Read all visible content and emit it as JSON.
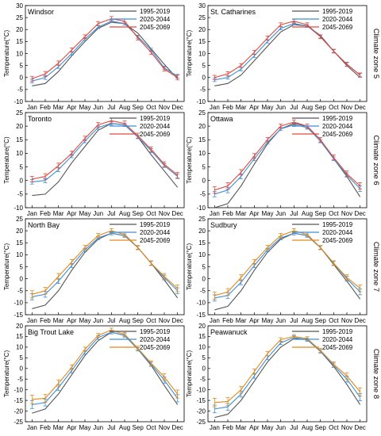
{
  "figure": {
    "zone_labels": [
      "Climate zone 5",
      "Climate zone 6",
      "Climate zone 7",
      "Climate zone 8"
    ]
  },
  "chart_data": [
    {
      "type": "line",
      "title": "Windsor",
      "zone": "Climate zone 5",
      "xlabel": "",
      "ylabel": "Temperature(°C)",
      "categories": [
        "Jan",
        "Feb",
        "Mar",
        "Apr",
        "May",
        "Jun",
        "Jul",
        "Aug",
        "Sep",
        "Oct",
        "Nov",
        "Dec"
      ],
      "ylim": [
        -10,
        30
      ],
      "yticks": [
        -10,
        -5,
        0,
        5,
        10,
        15,
        20,
        25,
        30
      ],
      "legend_position": "top-right",
      "series": [
        {
          "name": "1995-2019",
          "color": "#555555",
          "values": [
            -3.5,
            -2.5,
            2.5,
            9,
            15,
            20.5,
            23,
            22.5,
            18.5,
            12,
            5.5,
            -0.5
          ]
        },
        {
          "name": "2020-2044",
          "color": "#3f8fd6",
          "values": [
            -1.5,
            0,
            4.5,
            10,
            16,
            21,
            23.5,
            22.5,
            17,
            11.5,
            4,
            0.5
          ],
          "errors": [
            0.8,
            0.8,
            0.7,
            0.6,
            0.6,
            0.6,
            0.6,
            0.6,
            0.6,
            0.7,
            0.7,
            0.8
          ]
        },
        {
          "name": "2045-2069",
          "color": "#e04a3e",
          "values": [
            -0.5,
            1.5,
            6,
            11.5,
            17,
            22.5,
            24.5,
            23.5,
            16.5,
            10.5,
            3.5,
            0
          ],
          "errors": [
            1,
            1,
            0.9,
            0.8,
            0.8,
            0.8,
            0.9,
            0.9,
            0.9,
            0.9,
            0.9,
            1
          ]
        }
      ]
    },
    {
      "type": "line",
      "title": "St. Catharines",
      "zone": "Climate zone 5",
      "xlabel": "",
      "ylabel": "Temperature(°C)",
      "categories": [
        "Jan",
        "Feb",
        "Mar",
        "Apr",
        "May",
        "Jun",
        "Jul",
        "Aug",
        "Sep",
        "Oct",
        "Nov",
        "Dec"
      ],
      "ylim": [
        -10,
        30
      ],
      "yticks": [
        -10,
        -5,
        0,
        5,
        10,
        15,
        20,
        25,
        30
      ],
      "legend_position": "top-right",
      "series": [
        {
          "name": "1995-2019",
          "color": "#555555",
          "values": [
            -3.5,
            -2.5,
            1,
            7,
            13,
            19,
            22,
            21.5,
            17.5,
            11,
            5,
            0
          ]
        },
        {
          "name": "2020-2044",
          "color": "#3f8fd6",
          "values": [
            -1,
            0,
            3.5,
            9,
            15,
            20.5,
            22.5,
            21.5,
            17,
            11,
            5.5,
            1
          ],
          "errors": [
            0.7,
            0.7,
            0.7,
            0.6,
            0.6,
            0.6,
            0.6,
            0.6,
            0.6,
            0.6,
            0.7,
            0.7
          ]
        },
        {
          "name": "2045-2069",
          "color": "#e04a3e",
          "values": [
            0,
            1.5,
            5,
            10.5,
            16.5,
            22,
            23.5,
            22,
            17,
            11,
            5.5,
            1
          ],
          "errors": [
            0.9,
            0.9,
            0.8,
            0.8,
            0.8,
            0.8,
            0.8,
            0.8,
            0.8,
            0.8,
            0.9,
            0.9
          ]
        }
      ]
    },
    {
      "type": "line",
      "title": "Toronto",
      "zone": "Climate zone 6",
      "xlabel": "",
      "ylabel": "Temperature(°C)",
      "categories": [
        "Jan",
        "Feb",
        "Mar",
        "Apr",
        "May",
        "Jun",
        "Jul",
        "Aug",
        "Sep",
        "Oct",
        "Nov",
        "Dec"
      ],
      "ylim": [
        -10,
        25
      ],
      "yticks": [
        -10,
        -5,
        0,
        5,
        10,
        15,
        20,
        25
      ],
      "legend_position": "top-right",
      "series": [
        {
          "name": "1995-2019",
          "color": "#555555",
          "values": [
            -5.5,
            -5,
            -0.5,
            6.5,
            12.5,
            18.5,
            21,
            20.5,
            16,
            9.5,
            3.5,
            -2.5
          ]
        },
        {
          "name": "2020-2044",
          "color": "#3f8fd6",
          "values": [
            -0.5,
            0,
            4,
            9,
            14.5,
            19.5,
            21,
            20.5,
            16,
            11,
            5.5,
            1.5
          ],
          "errors": [
            0.8,
            0.8,
            0.7,
            0.6,
            0.6,
            0.6,
            0.6,
            0.6,
            0.6,
            0.7,
            0.7,
            0.8
          ]
        },
        {
          "name": "2045-2069",
          "color": "#e04a3e",
          "values": [
            0.5,
            1.5,
            5.5,
            10,
            15.5,
            20.5,
            22,
            21,
            16.5,
            11.5,
            6,
            2
          ],
          "errors": [
            1,
            1,
            0.9,
            0.8,
            0.8,
            0.8,
            0.9,
            0.9,
            0.9,
            0.9,
            0.9,
            1
          ]
        }
      ]
    },
    {
      "type": "line",
      "title": "Ottawa",
      "zone": "Climate zone 6",
      "xlabel": "",
      "ylabel": "Temperature(°C)",
      "categories": [
        "Jan",
        "Feb",
        "Mar",
        "Apr",
        "May",
        "Jun",
        "Jul",
        "Aug",
        "Sep",
        "Oct",
        "Nov",
        "Dec"
      ],
      "ylim": [
        -10,
        25
      ],
      "yticks": [
        -10,
        -5,
        0,
        5,
        10,
        15,
        20,
        25
      ],
      "legend_position": "top-right",
      "series": [
        {
          "name": "1995-2019",
          "color": "#555555",
          "values": [
            -10,
            -8.5,
            -2,
            6,
            13.5,
            19,
            21,
            20,
            15,
            8,
            1.5,
            -6
          ]
        },
        {
          "name": "2020-2044",
          "color": "#3f8fd6",
          "values": [
            -5,
            -3.5,
            1.5,
            8,
            14,
            19,
            20.5,
            19.5,
            14.5,
            8,
            2,
            -3
          ],
          "errors": [
            1,
            1,
            0.9,
            0.7,
            0.6,
            0.6,
            0.6,
            0.6,
            0.6,
            0.7,
            0.8,
            1
          ]
        },
        {
          "name": "2045-2069",
          "color": "#e04a3e",
          "values": [
            -3.5,
            -2,
            3,
            9,
            15,
            20,
            21.5,
            20,
            15,
            8.5,
            2.5,
            -2
          ],
          "errors": [
            1.2,
            1.2,
            1,
            0.9,
            0.8,
            0.8,
            0.8,
            0.8,
            0.8,
            0.9,
            1,
            1.2
          ]
        }
      ]
    },
    {
      "type": "line",
      "title": "North Bay",
      "zone": "Climate zone 7",
      "xlabel": "",
      "ylabel": "Temperature(°C)",
      "categories": [
        "Jan",
        "Feb",
        "Mar",
        "Apr",
        "May",
        "Jun",
        "Jul",
        "Aug",
        "Sep",
        "Oct",
        "Nov",
        "Dec"
      ],
      "ylim": [
        -15,
        25
      ],
      "yticks": [
        -15,
        -10,
        -5,
        0,
        5,
        10,
        15,
        20,
        25
      ],
      "legend_position": "top-right",
      "series": [
        {
          "name": "1995-2019",
          "color": "#555555",
          "values": [
            -12.5,
            -11,
            -5,
            3.5,
            11,
            16.5,
            19,
            18,
            13,
            6.5,
            -0.5,
            -8
          ]
        },
        {
          "name": "2020-2044",
          "color": "#3f8fd6",
          "values": [
            -7.5,
            -6.5,
            -1,
            5.5,
            12,
            17,
            19,
            18,
            13,
            6.5,
            0.5,
            -5
          ],
          "errors": [
            1.3,
            1.2,
            1,
            0.8,
            0.7,
            0.7,
            0.7,
            0.7,
            0.7,
            0.8,
            1,
            1.2
          ]
        },
        {
          "name": "2045-2069",
          "color": "#e08a1e",
          "values": [
            -6.5,
            -5,
            1,
            7,
            13,
            18,
            20,
            18.5,
            13,
            6.5,
            1,
            -4
          ],
          "errors": [
            1.5,
            1.4,
            1.2,
            1,
            0.9,
            0.9,
            0.9,
            0.9,
            0.9,
            1,
            1.2,
            1.4
          ]
        }
      ]
    },
    {
      "type": "line",
      "title": "Sudbury",
      "zone": "Climate zone 7",
      "xlabel": "",
      "ylabel": "Temperature(°C)",
      "categories": [
        "Jan",
        "Feb",
        "Mar",
        "Apr",
        "May",
        "Jun",
        "Jul",
        "Aug",
        "Sep",
        "Oct",
        "Nov",
        "Dec"
      ],
      "ylim": [
        -15,
        25
      ],
      "yticks": [
        -15,
        -10,
        -5,
        0,
        5,
        10,
        15,
        20,
        25
      ],
      "legend_position": "top-right",
      "series": [
        {
          "name": "1995-2019",
          "color": "#555555",
          "values": [
            -13,
            -11.5,
            -5,
            3.5,
            11,
            16.5,
            19,
            18,
            13,
            6,
            -1,
            -8.5
          ]
        },
        {
          "name": "2020-2044",
          "color": "#3f8fd6",
          "values": [
            -8,
            -7,
            -1.5,
            5.5,
            12,
            17,
            19,
            18,
            13,
            6.5,
            0,
            -5.5
          ],
          "errors": [
            1.3,
            1.2,
            1,
            0.8,
            0.7,
            0.7,
            0.7,
            0.7,
            0.7,
            0.8,
            1,
            1.2
          ]
        },
        {
          "name": "2045-2069",
          "color": "#e08a1e",
          "values": [
            -7,
            -5.5,
            0.5,
            7,
            13,
            18,
            20,
            18.5,
            13,
            6.5,
            0.5,
            -4
          ],
          "errors": [
            1.5,
            1.4,
            1.2,
            1,
            0.9,
            0.9,
            0.9,
            0.9,
            0.9,
            1,
            1.2,
            1.4
          ]
        }
      ]
    },
    {
      "type": "line",
      "title": "Big Trout Lake",
      "zone": "Climate zone 8",
      "xlabel": "",
      "ylabel": "Temperature(°C)",
      "categories": [
        "Jan",
        "Feb",
        "Mar",
        "Apr",
        "May",
        "Jun",
        "Jul",
        "Aug",
        "Sep",
        "Oct",
        "Nov",
        "Dec"
      ],
      "ylim": [
        -25,
        20
      ],
      "yticks": [
        -25,
        -20,
        -15,
        -10,
        -5,
        0,
        5,
        10,
        15,
        20
      ],
      "legend_position": "top-right",
      "series": [
        {
          "name": "1995-2019",
          "color": "#555555",
          "values": [
            -21,
            -19,
            -12,
            -3,
            6,
            13,
            17,
            15.5,
            9,
            1.5,
            -8,
            -17
          ]
        },
        {
          "name": "2020-2044",
          "color": "#3f8fd6",
          "values": [
            -17,
            -16,
            -9,
            -1,
            7.5,
            14.5,
            17,
            15.5,
            9,
            2,
            -5.5,
            -14
          ],
          "errors": [
            1.8,
            1.6,
            1.4,
            1.1,
            0.9,
            0.8,
            0.8,
            0.8,
            0.8,
            1,
            1.4,
            1.7
          ]
        },
        {
          "name": "2045-2069",
          "color": "#e08a1e",
          "values": [
            -14.5,
            -14,
            -7,
            0.5,
            9,
            15.5,
            18,
            16,
            9.5,
            2.5,
            -4,
            -12
          ],
          "errors": [
            2,
            1.8,
            1.6,
            1.2,
            1,
            0.9,
            0.9,
            0.9,
            0.9,
            1.1,
            1.5,
            1.9
          ]
        }
      ]
    },
    {
      "type": "line",
      "title": "Peawanuck",
      "zone": "Climate zone 8",
      "xlabel": "",
      "ylabel": "Temperature(°C)",
      "categories": [
        "Jan",
        "Feb",
        "Mar",
        "Apr",
        "May",
        "Jun",
        "Jul",
        "Aug",
        "Sep",
        "Oct",
        "Nov",
        "Dec"
      ],
      "ylim": [
        -25,
        20
      ],
      "yticks": [
        -25,
        -20,
        -15,
        -10,
        -5,
        0,
        5,
        10,
        15,
        20
      ],
      "legend_position": "top-right",
      "series": [
        {
          "name": "1995-2019",
          "color": "#555555",
          "values": [
            -23,
            -21.5,
            -15,
            -6,
            3,
            10,
            14,
            13.5,
            8,
            1,
            -7.5,
            -17
          ]
        },
        {
          "name": "2020-2044",
          "color": "#3f8fd6",
          "values": [
            -19,
            -18,
            -12,
            -3.5,
            5,
            12,
            14.5,
            13.5,
            8,
            1.5,
            -5,
            -13.5
          ],
          "errors": [
            1.8,
            1.6,
            1.4,
            1.1,
            0.9,
            0.8,
            0.8,
            0.8,
            0.8,
            1,
            1.4,
            1.7
          ]
        },
        {
          "name": "2045-2069",
          "color": "#e08a1e",
          "values": [
            -16,
            -15.5,
            -10,
            -1.5,
            7,
            13.5,
            15,
            14,
            8.5,
            2,
            -3.5,
            -11
          ],
          "errors": [
            2,
            1.8,
            1.6,
            1.2,
            1,
            0.9,
            0.9,
            0.9,
            0.9,
            1.1,
            1.5,
            1.9
          ]
        }
      ]
    }
  ]
}
